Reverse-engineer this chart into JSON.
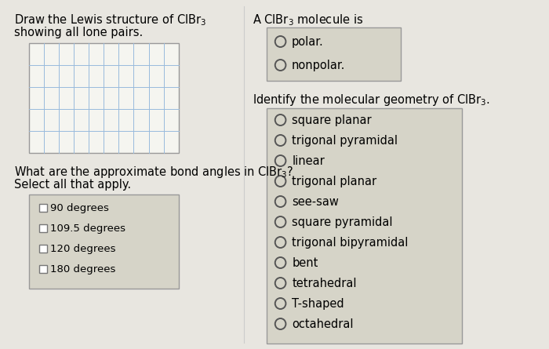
{
  "bg_color": "#e8e6e0",
  "box_bg": "#d6d4c8",
  "grid_color": "#99bbdd",
  "grid_rows": 5,
  "grid_cols": 10,
  "bond_angles_options": [
    "90 degrees",
    "109.5 degrees",
    "120 degrees",
    "180 degrees"
  ],
  "polar_options": [
    "polar.",
    "nonpolar."
  ],
  "geometry_options": [
    "square planar",
    "trigonal pyramidal",
    "linear",
    "trigonal planar",
    "see-saw",
    "square pyramidal",
    "trigonal bipyramidal",
    "bent",
    "tetrahedral",
    "T-shaped",
    "octahedral"
  ],
  "font_size": 10.5,
  "font_size_small": 9.5
}
